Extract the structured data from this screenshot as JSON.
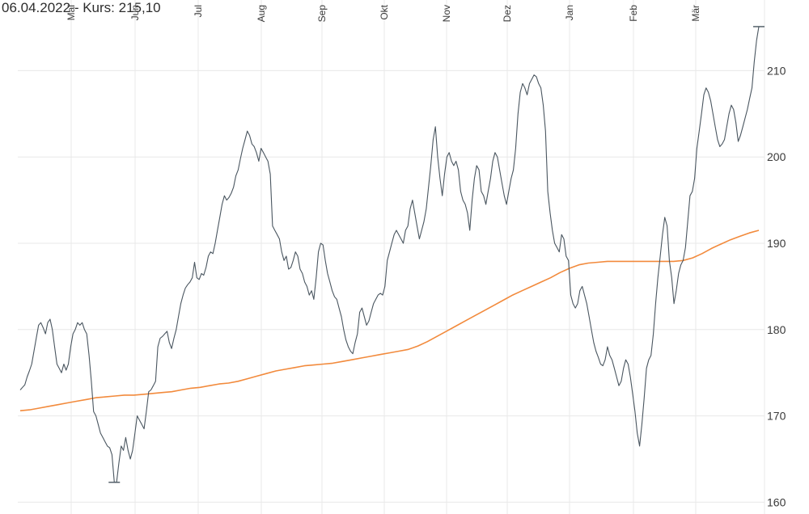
{
  "header": {
    "date": "06.04.2022",
    "kurs_label": " - Kurs: ",
    "kurs_value": "215,10"
  },
  "chart_data": {
    "type": "line",
    "x_tick_labels": [
      "Mai",
      "Jun",
      "Jul",
      "Aug",
      "Sep",
      "Okt",
      "Nov",
      "Dez",
      "Jan",
      "Feb",
      "Mär"
    ],
    "y_tick_labels": [
      160,
      170,
      180,
      190,
      200,
      210
    ],
    "ylim": [
      159.5,
      215.5
    ],
    "grid": true,
    "colors": {
      "price": "#4a5660",
      "moving_average": "#f28a3c",
      "grid": "#e8e8e8"
    },
    "series": [
      {
        "key": "price",
        "values": [
          173,
          173.3,
          173.6,
          174.5,
          175.2,
          176,
          177.5,
          179,
          180.5,
          180.8,
          180.2,
          179.5,
          180.8,
          181.2,
          180,
          178,
          176,
          175.5,
          175,
          176,
          175.3,
          176,
          178,
          179.5,
          180,
          180.8,
          180.5,
          180.8,
          180,
          179.5,
          177,
          174,
          170.5,
          170,
          169,
          168,
          167.5,
          167,
          166.5,
          166.3,
          165.5,
          162.3,
          162.3,
          164.5,
          166.5,
          166,
          167.5,
          166,
          165,
          166,
          168,
          170,
          169.5,
          169,
          168.5,
          170.5,
          172.8,
          173,
          173.5,
          174,
          178,
          179,
          179.2,
          179.5,
          179.8,
          178.5,
          177.8,
          179,
          180,
          181.5,
          183,
          184,
          184.8,
          185.2,
          185.5,
          186,
          187.8,
          186,
          185.8,
          186.5,
          186.3,
          187.2,
          188.5,
          189,
          188.8,
          190,
          191.5,
          193,
          194.5,
          195.5,
          195,
          195.3,
          195.8,
          196.5,
          197.8,
          198.5,
          199.8,
          201,
          202,
          203,
          202.5,
          201.5,
          201.2,
          200.5,
          199.5,
          201,
          200.5,
          200,
          199.5,
          198,
          192,
          191.5,
          191,
          190.5,
          189,
          188,
          188.5,
          187,
          187.2,
          188,
          189,
          188.5,
          187,
          186.5,
          185.5,
          185,
          184,
          184.5,
          183.5,
          186,
          189,
          190,
          189.8,
          188,
          186.5,
          185.5,
          184.5,
          183.8,
          183.5,
          182.5,
          181.5,
          180,
          178.8,
          178,
          177.5,
          177.2,
          178.5,
          179.5,
          182,
          182.5,
          181.5,
          180.5,
          181,
          182,
          183,
          183.5,
          184,
          184.2,
          184,
          185,
          188,
          189,
          190,
          191,
          191.5,
          191,
          190.5,
          190,
          191.5,
          192,
          194,
          195,
          193.5,
          192,
          190.5,
          191.5,
          192.5,
          194,
          196.5,
          199,
          202,
          203.5,
          200,
          197.5,
          195.5,
          198,
          200,
          200.5,
          199.5,
          199,
          199.5,
          198.5,
          196,
          195,
          194.5,
          193.5,
          191.5,
          195,
          197.5,
          199,
          198.5,
          196,
          195.5,
          194.5,
          196,
          197.5,
          199.5,
          200.5,
          200,
          198.5,
          197,
          195.5,
          194.5,
          196,
          197.5,
          198.5,
          201,
          205,
          207.5,
          208.5,
          208,
          207.2,
          208.5,
          209,
          209.5,
          209.3,
          208.5,
          208,
          206,
          203,
          196,
          193.5,
          191.5,
          190,
          189.5,
          189,
          191,
          190.5,
          188.5,
          188,
          184,
          183,
          182.5,
          183,
          184.5,
          185,
          184,
          183,
          181.5,
          180,
          178.5,
          177.5,
          176.8,
          176,
          175.8,
          176.5,
          178,
          177,
          176.5,
          175.5,
          174.5,
          173.5,
          174,
          175.5,
          176.5,
          176,
          174.5,
          172.5,
          170.5,
          168,
          166.5,
          169,
          172,
          175.5,
          176.5,
          177,
          179.5,
          183,
          186,
          188.5,
          191,
          193,
          192,
          188,
          186,
          183,
          184.5,
          186.5,
          187.5,
          188,
          189.5,
          192.5,
          195.5,
          196,
          197.5,
          201,
          203,
          205,
          207.2,
          208,
          207.5,
          206.5,
          205,
          203.5,
          202,
          201.2,
          201.5,
          202,
          203.5,
          205,
          206,
          205.5,
          204,
          201.8,
          202.5,
          203.5,
          204.5,
          205.5,
          206.8,
          208,
          211,
          213.5,
          215.1
        ]
      },
      {
        "key": "moving_average",
        "values": [
          170.6,
          170.7,
          170.9,
          171.1,
          171.3,
          171.5,
          171.7,
          171.9,
          172.1,
          172.2,
          172.3,
          172.4,
          172.4,
          172.5,
          172.6,
          172.7,
          172.8,
          173,
          173.2,
          173.3,
          173.5,
          173.7,
          173.8,
          174,
          174.3,
          174.6,
          174.9,
          175.2,
          175.4,
          175.6,
          175.8,
          175.9,
          176,
          176.1,
          176.3,
          176.5,
          176.7,
          176.9,
          177.1,
          177.3,
          177.5,
          177.7,
          178.1,
          178.6,
          179.2,
          179.8,
          180.4,
          181,
          181.6,
          182.2,
          182.8,
          183.4,
          184,
          184.5,
          185,
          185.5,
          186,
          186.6,
          187.1,
          187.5,
          187.7,
          187.8,
          187.9,
          187.9,
          187.9,
          187.9,
          187.9,
          187.9,
          187.9,
          187.9,
          188,
          188.3,
          188.8,
          189.4,
          189.9,
          190.4,
          190.8,
          191.2,
          191.5
        ]
      }
    ],
    "extreme_markers": [
      {
        "label": "low",
        "value": 162.3
      },
      {
        "label": "high",
        "value": 215.1
      }
    ]
  }
}
